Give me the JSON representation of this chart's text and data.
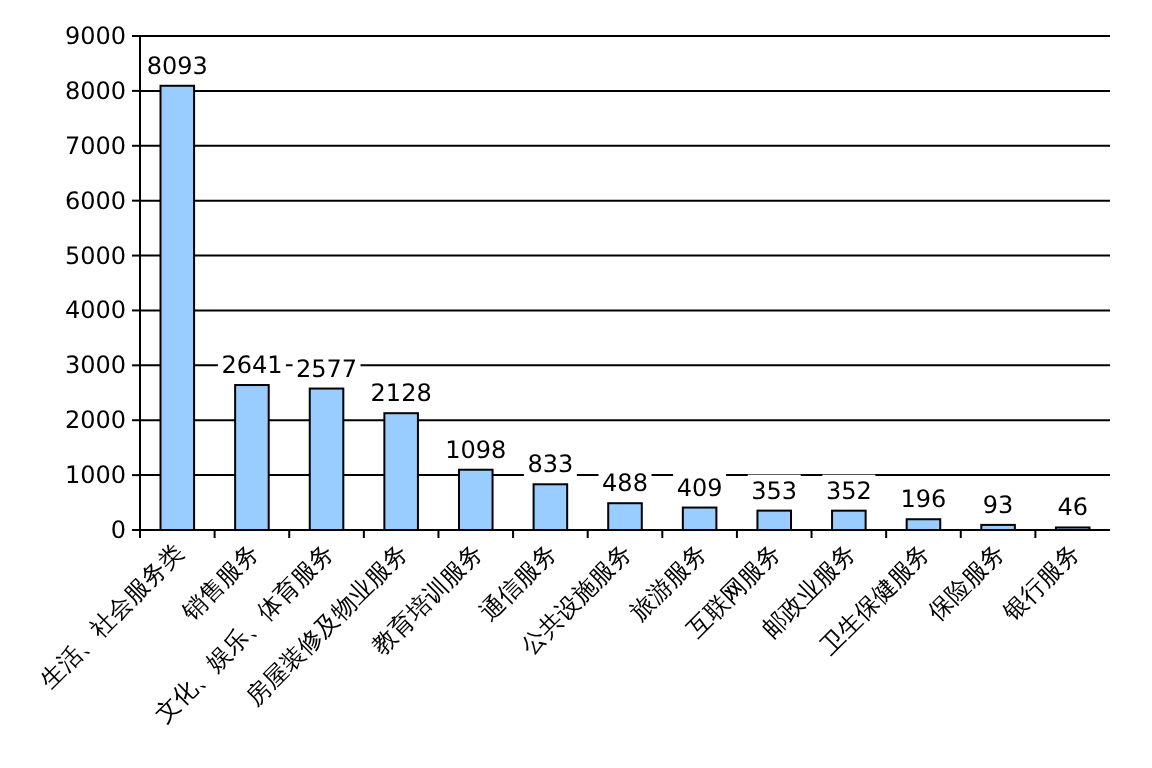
{
  "chart_data": {
    "type": "bar",
    "categories": [
      "生活、社会服务类",
      "销售服务",
      "文化、娱乐、体育服务",
      "房屋装修及物业服务",
      "教育培训服务",
      "通信服务",
      "公共设施服务",
      "旅游服务",
      "互联网服务",
      "邮政业服务",
      "卫生保健服务",
      "保险服务",
      "银行服务"
    ],
    "values": [
      8093,
      2641,
      2577,
      2128,
      1098,
      833,
      488,
      409,
      353,
      352,
      196,
      93,
      46
    ],
    "color": "#99ccff",
    "ylim": [
      0,
      9000
    ],
    "yticks": [
      0,
      1000,
      2000,
      3000,
      4000,
      5000,
      6000,
      7000,
      8000,
      9000
    ],
    "grid": "y",
    "data_labels": true
  }
}
